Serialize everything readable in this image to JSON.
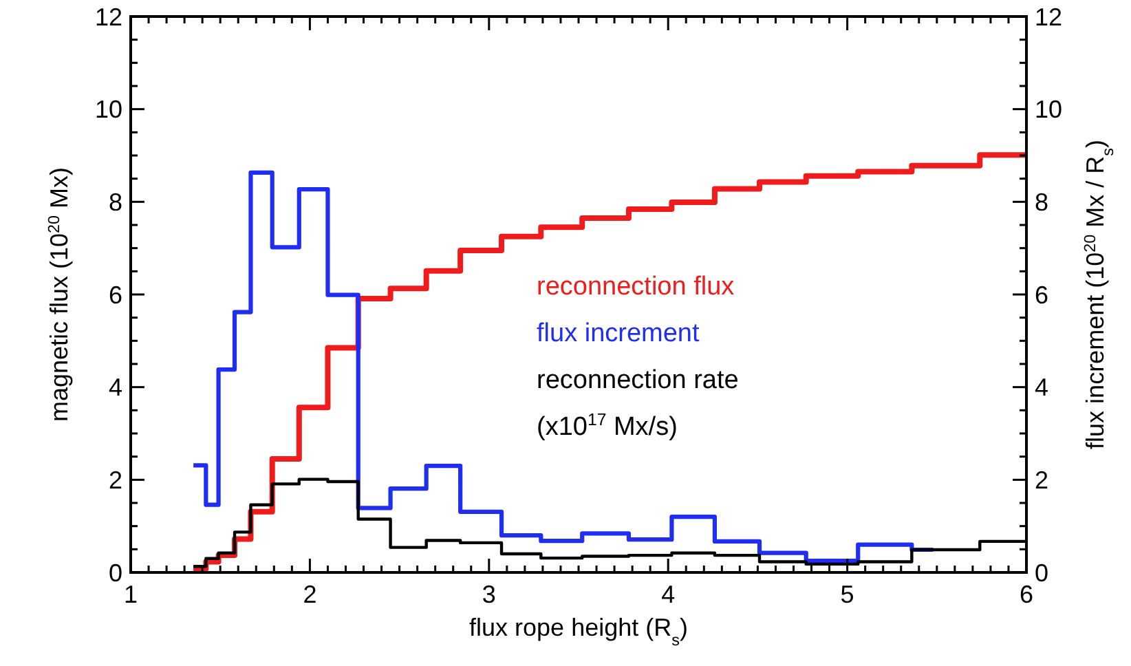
{
  "chart_data": {
    "type": "step",
    "xlabel": "flux rope height (R$_{s}$)",
    "ylabel": "magnetic flux (10$^{20}$ Mx)",
    "y2label": "flux increment (10$^{20}$ Mx / R$_{s}$)",
    "xlim": [
      1,
      6
    ],
    "ylim": [
      0,
      12
    ],
    "y2lim": [
      0,
      12
    ],
    "xticks": [
      1,
      {
        "value": 1.1,
        "label": null
      },
      {
        "value": 1.2,
        "label": null
      },
      {
        "value": 1.3,
        "label": null
      },
      {
        "value": 1.4,
        "label": null
      },
      {
        "value": 1.5,
        "label": null
      },
      {
        "value": 1.6,
        "label": null
      },
      {
        "value": 1.7,
        "label": null
      },
      {
        "value": 1.8,
        "label": null
      },
      {
        "value": 1.9,
        "label": null
      },
      2,
      {
        "value": 2.1,
        "label": null
      },
      {
        "value": 2.2,
        "label": null
      },
      {
        "value": 2.3,
        "label": null
      },
      {
        "value": 2.4,
        "label": null
      },
      {
        "value": 2.5,
        "label": null
      },
      {
        "value": 2.6,
        "label": null
      },
      {
        "value": 2.7,
        "label": null
      },
      {
        "value": 2.8,
        "label": null
      },
      {
        "value": 2.9,
        "label": null
      },
      3,
      {
        "value": 3.1,
        "label": null
      },
      {
        "value": 3.2,
        "label": null
      },
      {
        "value": 3.3,
        "label": null
      },
      {
        "value": 3.4,
        "label": null
      },
      {
        "value": 3.5,
        "label": null
      },
      {
        "value": 3.6,
        "label": null
      },
      {
        "value": 3.7,
        "label": null
      },
      {
        "value": 3.8,
        "label": null
      },
      {
        "value": 3.9,
        "label": null
      },
      4,
      {
        "value": 4.1,
        "label": null
      },
      {
        "value": 4.2,
        "label": null
      },
      {
        "value": 4.3,
        "label": null
      },
      {
        "value": 4.4,
        "label": null
      },
      {
        "value": 4.5,
        "label": null
      },
      {
        "value": 4.6,
        "label": null
      },
      {
        "value": 4.7,
        "label": null
      },
      {
        "value": 4.8,
        "label": null
      },
      {
        "value": 4.9,
        "label": null
      },
      5,
      {
        "value": 5.1,
        "label": null
      },
      {
        "value": 5.2,
        "label": null
      },
      {
        "value": 5.3,
        "label": null
      },
      {
        "value": 5.4,
        "label": null
      },
      {
        "value": 5.5,
        "label": null
      },
      {
        "value": 5.6,
        "label": null
      },
      {
        "value": 5.7,
        "label": null
      },
      {
        "value": 5.8,
        "label": null
      },
      {
        "value": 5.9,
        "label": null
      },
      6
    ],
    "yticks": [
      0,
      {
        "value": 0.5,
        "label": null
      },
      {
        "value": 1,
        "label": null
      },
      {
        "value": 1.5,
        "label": null
      },
      2,
      {
        "value": 2.5,
        "label": null
      },
      {
        "value": 3,
        "label": null
      },
      {
        "value": 3.5,
        "label": null
      },
      4,
      {
        "value": 4.5,
        "label": null
      },
      {
        "value": 5,
        "label": null
      },
      {
        "value": 5.5,
        "label": null
      },
      6,
      {
        "value": 6.5,
        "label": null
      },
      {
        "value": 7,
        "label": null
      },
      {
        "value": 7.5,
        "label": null
      },
      8,
      {
        "value": 8.5,
        "label": null
      },
      {
        "value": 9,
        "label": null
      },
      {
        "value": 9.5,
        "label": null
      },
      10,
      {
        "value": 10.5,
        "label": null
      },
      {
        "value": 11,
        "label": null
      },
      {
        "value": 11.5,
        "label": null
      },
      12
    ],
    "y2ticks": [
      0,
      {
        "value": 0.5,
        "label": null
      },
      {
        "value": 1,
        "label": null
      },
      {
        "value": 1.5,
        "label": null
      },
      2,
      {
        "value": 2.5,
        "label": null
      },
      {
        "value": 3,
        "label": null
      },
      {
        "value": 3.5,
        "label": null
      },
      4,
      {
        "value": 4.5,
        "label": null
      },
      {
        "value": 5,
        "label": null
      },
      {
        "value": 5.5,
        "label": null
      },
      6,
      {
        "value": 6.5,
        "label": null
      },
      {
        "value": 7,
        "label": null
      },
      {
        "value": 7.5,
        "label": null
      },
      8,
      {
        "value": 8.5,
        "label": null
      },
      {
        "value": 9,
        "label": null
      },
      {
        "value": 9.5,
        "label": null
      },
      10,
      {
        "value": 10.5,
        "label": null
      },
      {
        "value": 11,
        "label": null
      },
      {
        "value": 11.5,
        "label": null
      },
      12
    ],
    "grid": false,
    "legend": "right",
    "series": [
      {
        "name": "reconnection flux",
        "color": "#ee1c1c",
        "x": [
          1.35,
          1.42,
          1.49,
          1.58,
          1.67,
          1.79,
          1.94,
          2.1,
          2.27,
          2.45,
          2.65,
          2.84,
          3.07,
          3.29,
          3.52,
          3.78,
          4.02,
          4.26,
          4.51,
          4.77,
          5.06,
          5.36,
          5.74,
          6.0
        ],
        "values": [
          0.08,
          0.23,
          0.37,
          0.72,
          1.31,
          2.45,
          3.56,
          4.85,
          5.91,
          6.13,
          6.51,
          6.95,
          7.25,
          7.45,
          7.65,
          7.84,
          7.99,
          8.28,
          8.43,
          8.56,
          8.65,
          8.78,
          9.01,
          9.01
        ]
      },
      {
        "name": "flux increment",
        "color": "#1f2ef0",
        "x": [
          1.35,
          1.42,
          1.49,
          1.58,
          1.67,
          1.79,
          1.94,
          2.1,
          2.27,
          2.45,
          2.65,
          2.84,
          3.07,
          3.29,
          3.52,
          3.78,
          4.02,
          4.26,
          4.51,
          4.77,
          5.06,
          5.36,
          5.48
        ],
        "values": [
          2.31,
          1.46,
          4.38,
          5.62,
          8.63,
          7.02,
          8.27,
          5.99,
          1.39,
          1.81,
          2.3,
          1.31,
          0.8,
          0.68,
          0.84,
          0.71,
          1.2,
          0.67,
          0.42,
          0.25,
          0.6,
          0.49,
          0.49
        ]
      },
      {
        "name": "reconnection rate",
        "color": "#000000",
        "x": [
          1.35,
          1.42,
          1.49,
          1.58,
          1.67,
          1.79,
          1.94,
          2.1,
          2.27,
          2.45,
          2.65,
          2.84,
          3.07,
          3.29,
          3.52,
          3.78,
          4.02,
          4.26,
          4.51,
          4.77,
          5.06,
          5.36,
          5.74,
          6.0
        ],
        "values": [
          0.13,
          0.3,
          0.42,
          0.87,
          1.46,
          1.91,
          2.01,
          1.96,
          1.15,
          0.54,
          0.69,
          0.64,
          0.4,
          0.31,
          0.35,
          0.37,
          0.42,
          0.37,
          0.23,
          0.18,
          0.23,
          0.49,
          0.67,
          0.67
        ]
      }
    ],
    "annotations": [
      "(x10$^{17}$ Mx/s)"
    ]
  }
}
